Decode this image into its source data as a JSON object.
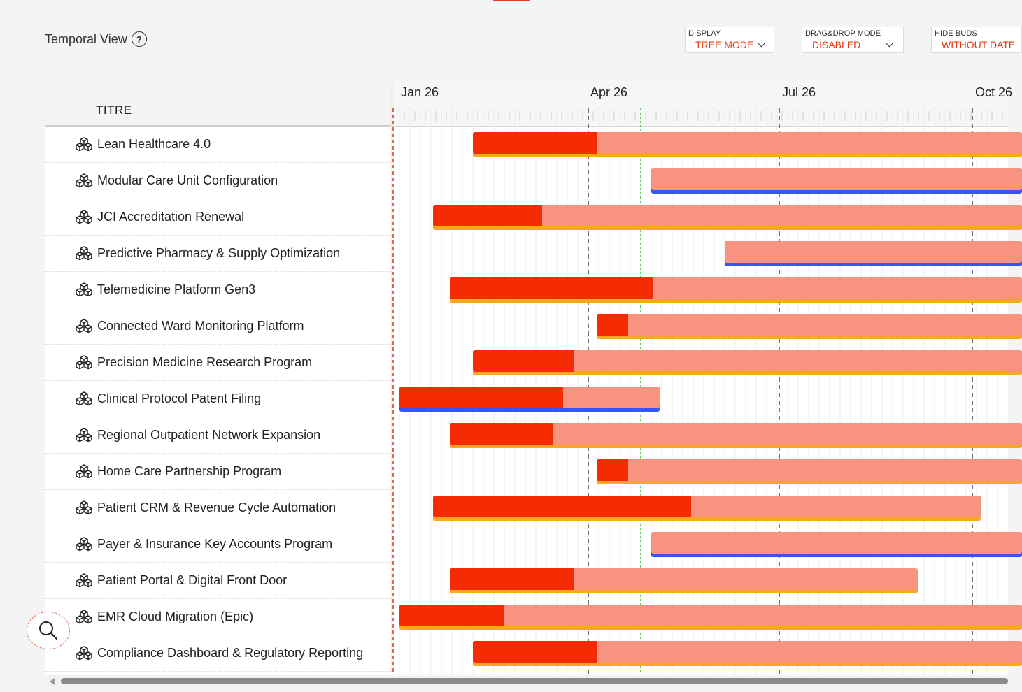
{
  "header": {
    "title": "Temporal View",
    "help_icon": "question-circle-icon"
  },
  "controls": {
    "display": {
      "label": "DISPLAY",
      "value": "TREE MODE"
    },
    "dragdrop": {
      "label": "DRAG&DROP MODE",
      "value": "DISABLED"
    },
    "hidebuds": {
      "label": "HIDE BUDS",
      "value": "WITHOUT DATE"
    }
  },
  "table": {
    "column_title": "TITRE",
    "row_icon": "cubes-icon"
  },
  "timeline": {
    "months": [
      "Jan 26",
      "Apr 26",
      "Jul 26",
      "Oct 26"
    ]
  },
  "colors": {
    "accent": "#e63b14",
    "bar_done": "#f52c03",
    "bar_remaining": "#f8937f",
    "underline_orange": "#f7a91d",
    "underline_blue": "#3556f0",
    "today_line": "#34c13a"
  },
  "rows": [
    {
      "title": "Lean Healthcare 4.0",
      "start": "2026-02-05",
      "progress_end": "2026-04-05",
      "end": "open",
      "underline": "orange"
    },
    {
      "title": "Modular Care Unit Configuration",
      "start": "2026-05-01",
      "progress_end": null,
      "end": "open",
      "underline": "blue"
    },
    {
      "title": "JCI Accreditation Renewal",
      "start": "2026-01-17",
      "progress_end": "2026-03-10",
      "end": "open",
      "underline": "orange"
    },
    {
      "title": "Predictive Pharmacy & Supply Optimization",
      "start": "2026-06-05",
      "progress_end": null,
      "end": "open",
      "underline": "blue"
    },
    {
      "title": "Telemedicine Platform Gen3",
      "start": "2026-01-25",
      "progress_end": "2026-05-02",
      "end": "open",
      "underline": "orange"
    },
    {
      "title": "Connected Ward Monitoring Platform",
      "start": "2026-04-05",
      "progress_end": "2026-04-20",
      "end": "open",
      "underline": "orange"
    },
    {
      "title": "Precision Medicine Research Program",
      "start": "2026-02-05",
      "progress_end": "2026-03-25",
      "end": "open",
      "underline": "orange"
    },
    {
      "title": "Clinical Protocol Patent Filing",
      "start": "2026-01-01",
      "progress_end": "2026-03-20",
      "end": "2026-05-05",
      "underline": "blue"
    },
    {
      "title": "Regional Outpatient Network Expansion",
      "start": "2026-01-25",
      "progress_end": "2026-03-15",
      "end": "open",
      "underline": "orange"
    },
    {
      "title": "Home Care Partnership Program",
      "start": "2026-04-05",
      "progress_end": "2026-04-20",
      "end": "open",
      "underline": "orange"
    },
    {
      "title": "Patient CRM & Revenue Cycle Automation",
      "start": "2026-01-17",
      "progress_end": "2026-05-20",
      "end": "2026-10-05",
      "underline": "orange"
    },
    {
      "title": "Payer & Insurance Key Accounts Program",
      "start": "2026-05-01",
      "progress_end": null,
      "end": "open",
      "underline": "blue"
    },
    {
      "title": "Patient Portal & Digital Front Door",
      "start": "2026-01-25",
      "progress_end": "2026-03-25",
      "end": "2026-09-05",
      "underline": "orange"
    },
    {
      "title": "EMR Cloud Migration (Epic)",
      "start": "2026-01-01",
      "progress_end": "2026-02-20",
      "end": "open",
      "underline": "orange"
    },
    {
      "title": "Compliance Dashboard & Regulatory Reporting",
      "start": "2026-02-05",
      "progress_end": "2026-04-05",
      "end": "open",
      "underline": "orange"
    }
  ],
  "fab": {
    "icon": "search-icon"
  }
}
